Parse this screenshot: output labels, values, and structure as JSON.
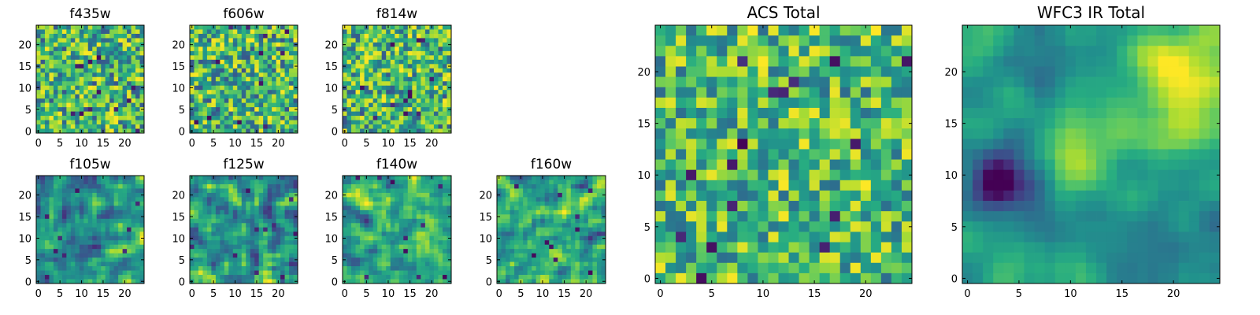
{
  "chart_data": [
    {
      "type": "heatmap",
      "title": "f435w",
      "size": 25,
      "xticks": [
        0,
        5,
        10,
        15,
        20
      ],
      "yticks": [
        0,
        5,
        10,
        15,
        20
      ],
      "xlim": [
        -0.5,
        24.5
      ],
      "ylim": [
        -0.5,
        24.5
      ],
      "colormap": "viridis",
      "texture": "fine-noise"
    },
    {
      "type": "heatmap",
      "title": "f606w",
      "size": 25,
      "xticks": [
        0,
        5,
        10,
        15,
        20
      ],
      "yticks": [
        0,
        5,
        10,
        15,
        20
      ],
      "xlim": [
        -0.5,
        24.5
      ],
      "ylim": [
        -0.5,
        24.5
      ],
      "colormap": "viridis",
      "texture": "fine-noise"
    },
    {
      "type": "heatmap",
      "title": "f814w",
      "size": 25,
      "xticks": [
        0,
        5,
        10,
        15,
        20
      ],
      "yticks": [
        0,
        5,
        10,
        15,
        20
      ],
      "xlim": [
        -0.5,
        24.5
      ],
      "ylim": [
        -0.5,
        24.5
      ],
      "colormap": "viridis",
      "texture": "fine-noise"
    },
    {
      "type": "heatmap",
      "title": "f105w",
      "size": 25,
      "xticks": [
        0,
        5,
        10,
        15,
        20
      ],
      "yticks": [
        0,
        5,
        10,
        15,
        20
      ],
      "xlim": [
        -0.5,
        24.5
      ],
      "ylim": [
        -0.5,
        24.5
      ],
      "colormap": "viridis",
      "texture": "smooth-noise"
    },
    {
      "type": "heatmap",
      "title": "f125w",
      "size": 25,
      "xticks": [
        0,
        5,
        10,
        15,
        20
      ],
      "yticks": [
        0,
        5,
        10,
        15,
        20
      ],
      "xlim": [
        -0.5,
        24.5
      ],
      "ylim": [
        -0.5,
        24.5
      ],
      "colormap": "viridis",
      "texture": "smooth-noise"
    },
    {
      "type": "heatmap",
      "title": "f140w",
      "size": 25,
      "xticks": [
        0,
        5,
        10,
        15,
        20
      ],
      "yticks": [
        0,
        5,
        10,
        15,
        20
      ],
      "xlim": [
        -0.5,
        24.5
      ],
      "ylim": [
        -0.5,
        24.5
      ],
      "colormap": "viridis",
      "texture": "smooth-noise"
    },
    {
      "type": "heatmap",
      "title": "f160w",
      "size": 25,
      "xticks": [
        0,
        5,
        10,
        15,
        20
      ],
      "yticks": [
        0,
        5,
        10,
        15,
        20
      ],
      "xlim": [
        -0.5,
        24.5
      ],
      "ylim": [
        -0.5,
        24.5
      ],
      "colormap": "viridis",
      "texture": "smooth-noise"
    },
    {
      "type": "heatmap",
      "title": "ACS Total",
      "size": 25,
      "xticks": [
        0,
        5,
        10,
        15,
        20
      ],
      "yticks": [
        0,
        5,
        10,
        15,
        20
      ],
      "xlim": [
        -0.5,
        24.5
      ],
      "ylim": [
        -0.5,
        24.5
      ],
      "colormap": "viridis",
      "texture": "coarse-noise"
    },
    {
      "type": "heatmap",
      "title": "WFC3 IR Total",
      "size": 25,
      "xticks": [
        0,
        5,
        10,
        15,
        20
      ],
      "yticks": [
        0,
        5,
        10,
        15,
        20
      ],
      "xlim": [
        -0.5,
        24.5
      ],
      "ylim": [
        -0.5,
        24.5
      ],
      "colormap": "viridis",
      "texture": "structured"
    }
  ]
}
